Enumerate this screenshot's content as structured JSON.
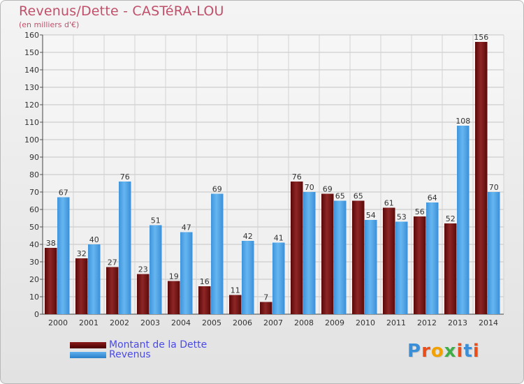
{
  "title": "Revenus/Dette - CASTéRA-LOU",
  "subtitle": "(en milliers d'€)",
  "logo": {
    "text": "Proxiti",
    "colors": [
      "#3a8fd8",
      "#e94e1b",
      "#f2a100",
      "#3fae49",
      "#e94e1b",
      "#3a8fd8",
      "#e94e1b"
    ]
  },
  "chart_data": {
    "type": "bar",
    "title": "Revenus/Dette - CASTéRA-LOU",
    "ylabel": "(en milliers d'€)",
    "xlabel": "",
    "categories": [
      "2000",
      "2001",
      "2002",
      "2003",
      "2004",
      "2005",
      "2006",
      "2007",
      "2008",
      "2009",
      "2010",
      "2011",
      "2012",
      "2013",
      "2014"
    ],
    "ylim": [
      0,
      160
    ],
    "yticks": [
      0,
      10,
      20,
      30,
      40,
      50,
      60,
      70,
      80,
      90,
      100,
      110,
      120,
      130,
      140,
      150,
      160
    ],
    "grid": true,
    "legend_position": "bottom-left",
    "series": [
      {
        "name": "Montant de la Dette",
        "color": "#7a1515",
        "values": [
          38,
          32,
          27,
          23,
          19,
          16,
          11,
          7,
          76,
          69,
          65,
          61,
          56,
          52,
          156
        ]
      },
      {
        "name": "Revenus",
        "color": "#4aa3e8",
        "values": [
          67,
          40,
          76,
          51,
          47,
          69,
          42,
          41,
          70,
          65,
          54,
          53,
          64,
          108,
          70
        ]
      }
    ]
  }
}
